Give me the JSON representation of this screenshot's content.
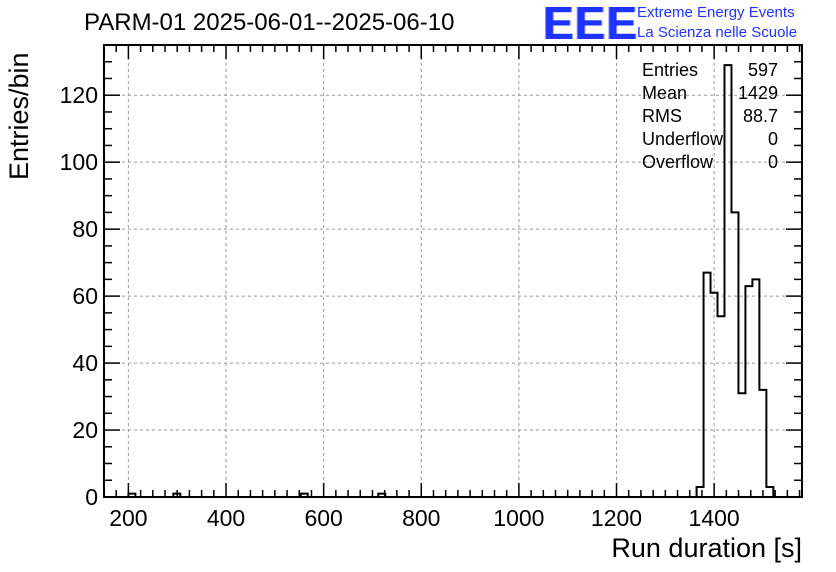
{
  "title": "PARM-01 2025-06-01--2025-06-10",
  "logo": {
    "mark": "EEE",
    "line1": "Extreme Energy Events",
    "line2": "La Scienza nelle Scuole",
    "color": "#1f33ff"
  },
  "stats": [
    {
      "label": "Entries",
      "value": "597"
    },
    {
      "label": "Mean",
      "value": "1429"
    },
    {
      "label": "RMS",
      "value": "88.7"
    },
    {
      "label": "Underflow",
      "value": "0"
    },
    {
      "label": "Overflow",
      "value": "0"
    }
  ],
  "chart_data": {
    "type": "bar",
    "histogram": true,
    "title": "PARM-01 2025-06-01--2025-06-10",
    "xlabel": "Run duration [s]",
    "ylabel": "Entries/bin",
    "xlim": [
      150,
      1580
    ],
    "ylim": [
      0,
      135
    ],
    "bin_width": 14.3,
    "xticks": [
      200,
      400,
      600,
      800,
      1000,
      1200,
      1400
    ],
    "yticks": [
      0,
      20,
      40,
      60,
      80,
      100,
      120
    ],
    "grid": true,
    "line_color": "#000000",
    "bins": [
      {
        "x0": 200,
        "count": 1
      },
      {
        "x0": 292,
        "count": 1
      },
      {
        "x0": 553,
        "count": 1
      },
      {
        "x0": 712,
        "count": 1
      },
      {
        "x0": 1364,
        "count": 3
      },
      {
        "x0": 1378.3,
        "count": 67
      },
      {
        "x0": 1392.6,
        "count": 61
      },
      {
        "x0": 1406.9,
        "count": 54
      },
      {
        "x0": 1421.2,
        "count": 129
      },
      {
        "x0": 1435.5,
        "count": 85
      },
      {
        "x0": 1449.8,
        "count": 31
      },
      {
        "x0": 1464.1,
        "count": 63
      },
      {
        "x0": 1478.4,
        "count": 65
      },
      {
        "x0": 1492.7,
        "count": 32
      },
      {
        "x0": 1507,
        "count": 3
      }
    ]
  }
}
